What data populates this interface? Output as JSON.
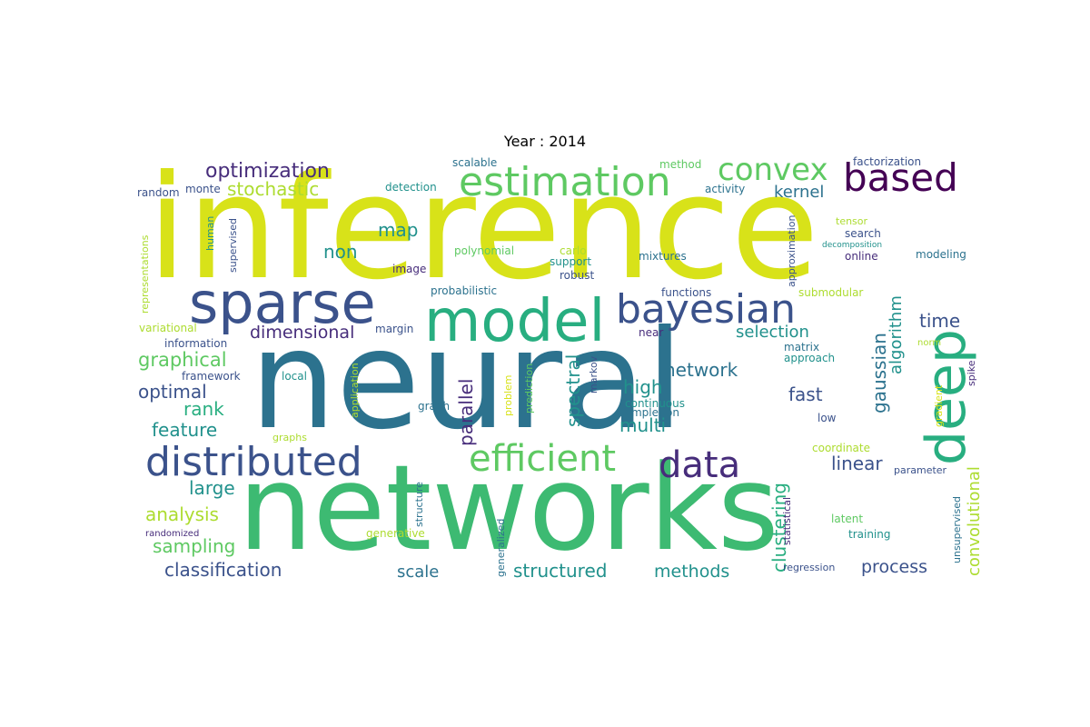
{
  "title": "Year : 2014",
  "palette": [
    "#440154",
    "#472d7b",
    "#3b528b",
    "#2c728e",
    "#21918c",
    "#28ae80",
    "#5ec962",
    "#addc30",
    "#d8e219"
  ],
  "words": [
    {
      "text": "inference",
      "color": "#d8e219"
    },
    {
      "text": "neural",
      "color": "#2c728e"
    },
    {
      "text": "networks",
      "color": "#3dba72"
    },
    {
      "text": "model",
      "color": "#28ae80"
    },
    {
      "text": "sparse",
      "color": "#3b528b"
    },
    {
      "text": "deep",
      "color": "#28ae80"
    },
    {
      "text": "estimation",
      "color": "#5ec962"
    },
    {
      "text": "bayesian",
      "color": "#3b528b"
    },
    {
      "text": "based",
      "color": "#440154"
    },
    {
      "text": "convex",
      "color": "#5ec962"
    },
    {
      "text": "distributed",
      "color": "#3b528b"
    },
    {
      "text": "efficient",
      "color": "#5ec962"
    },
    {
      "text": "data",
      "color": "#472d7b"
    },
    {
      "text": "optimization",
      "color": "#472d7b"
    },
    {
      "text": "stochastic",
      "color": "#addc30"
    },
    {
      "text": "kernel",
      "color": "#2c728e"
    },
    {
      "text": "graphical",
      "color": "#5ec962"
    },
    {
      "text": "dimensional",
      "color": "#472d7b"
    },
    {
      "text": "selection",
      "color": "#21918c"
    },
    {
      "text": "time",
      "color": "#3b528b"
    },
    {
      "text": "algorithm",
      "color": "#21918c"
    },
    {
      "text": "gaussian",
      "color": "#2c728e"
    },
    {
      "text": "network",
      "color": "#2c728e"
    },
    {
      "text": "high",
      "color": "#21918c"
    },
    {
      "text": "optimal",
      "color": "#3b528b"
    },
    {
      "text": "rank",
      "color": "#28ae80"
    },
    {
      "text": "feature",
      "color": "#21918c"
    },
    {
      "text": "spectral",
      "color": "#21918c"
    },
    {
      "text": "parallel",
      "color": "#472d7b"
    },
    {
      "text": "multi",
      "color": "#21918c"
    },
    {
      "text": "fast",
      "color": "#3b528b"
    },
    {
      "text": "clustering",
      "color": "#28ae80"
    },
    {
      "text": "linear",
      "color": "#3b528b"
    },
    {
      "text": "convolutional",
      "color": "#addc30"
    },
    {
      "text": "analysis",
      "color": "#addc30"
    },
    {
      "text": "sampling",
      "color": "#5ec962"
    },
    {
      "text": "large",
      "color": "#21918c"
    },
    {
      "text": "classification",
      "color": "#3b528b"
    },
    {
      "text": "scale",
      "color": "#2c728e"
    },
    {
      "text": "structured",
      "color": "#21918c"
    },
    {
      "text": "methods",
      "color": "#21918c"
    },
    {
      "text": "process",
      "color": "#3b528b"
    },
    {
      "text": "map",
      "color": "#21918c"
    },
    {
      "text": "non",
      "color": "#21918c"
    },
    {
      "text": "scalable",
      "color": "#2c728e"
    },
    {
      "text": "method",
      "color": "#5ec962"
    },
    {
      "text": "factorization",
      "color": "#3b528b"
    },
    {
      "text": "random",
      "color": "#3b528b"
    },
    {
      "text": "monte",
      "color": "#3b528b"
    },
    {
      "text": "detection",
      "color": "#21918c"
    },
    {
      "text": "activity",
      "color": "#2c728e"
    },
    {
      "text": "representations",
      "color": "#addc30"
    },
    {
      "text": "human",
      "color": "#21918c"
    },
    {
      "text": "supervised",
      "color": "#3b528b"
    },
    {
      "text": "polynomial",
      "color": "#5ec962"
    },
    {
      "text": "carlo",
      "color": "#addc30"
    },
    {
      "text": "approximation",
      "color": "#3b528b"
    },
    {
      "text": "tensor",
      "color": "#addc30"
    },
    {
      "text": "search",
      "color": "#3b528b"
    },
    {
      "text": "decomposition",
      "color": "#21918c"
    },
    {
      "text": "image",
      "color": "#472d7b"
    },
    {
      "text": "support",
      "color": "#21918c"
    },
    {
      "text": "robust",
      "color": "#3b528b"
    },
    {
      "text": "mixtures",
      "color": "#2c728e"
    },
    {
      "text": "online",
      "color": "#472d7b"
    },
    {
      "text": "modeling",
      "color": "#2c728e"
    },
    {
      "text": "probabilistic",
      "color": "#2c728e"
    },
    {
      "text": "functions",
      "color": "#3b528b"
    },
    {
      "text": "submodular",
      "color": "#addc30"
    },
    {
      "text": "variational",
      "color": "#addc30"
    },
    {
      "text": "margin",
      "color": "#3b528b"
    },
    {
      "text": "information",
      "color": "#3b528b"
    },
    {
      "text": "near",
      "color": "#472d7b"
    },
    {
      "text": "matrix",
      "color": "#2c728e"
    },
    {
      "text": "norm",
      "color": "#addc30"
    },
    {
      "text": "framework",
      "color": "#3b528b"
    },
    {
      "text": "local",
      "color": "#21918c"
    },
    {
      "text": "application",
      "color": "#addc30"
    },
    {
      "text": "problem",
      "color": "#d8e219"
    },
    {
      "text": "prediction",
      "color": "#5ec962"
    },
    {
      "text": "markov",
      "color": "#3b528b"
    },
    {
      "text": "approach",
      "color": "#21918c"
    },
    {
      "text": "spike",
      "color": "#472d7b"
    },
    {
      "text": "gradient",
      "color": "#d8e219"
    },
    {
      "text": "graph",
      "color": "#2c728e"
    },
    {
      "text": "continuous",
      "color": "#21918c"
    },
    {
      "text": "completion",
      "color": "#2c728e"
    },
    {
      "text": "low",
      "color": "#3b528b"
    },
    {
      "text": "graphs",
      "color": "#addc30"
    },
    {
      "text": "coordinate",
      "color": "#addc30"
    },
    {
      "text": "parameter",
      "color": "#3b528b"
    },
    {
      "text": "structure",
      "color": "#2c728e"
    },
    {
      "text": "generative",
      "color": "#addc30"
    },
    {
      "text": "randomized",
      "color": "#472d7b"
    },
    {
      "text": "generalized",
      "color": "#2c728e"
    },
    {
      "text": "statistical",
      "color": "#472d7b"
    },
    {
      "text": "unsupervised",
      "color": "#2c728e"
    },
    {
      "text": "latent",
      "color": "#5ec962"
    },
    {
      "text": "training",
      "color": "#21918c"
    },
    {
      "text": "regression",
      "color": "#3b528b"
    }
  ]
}
